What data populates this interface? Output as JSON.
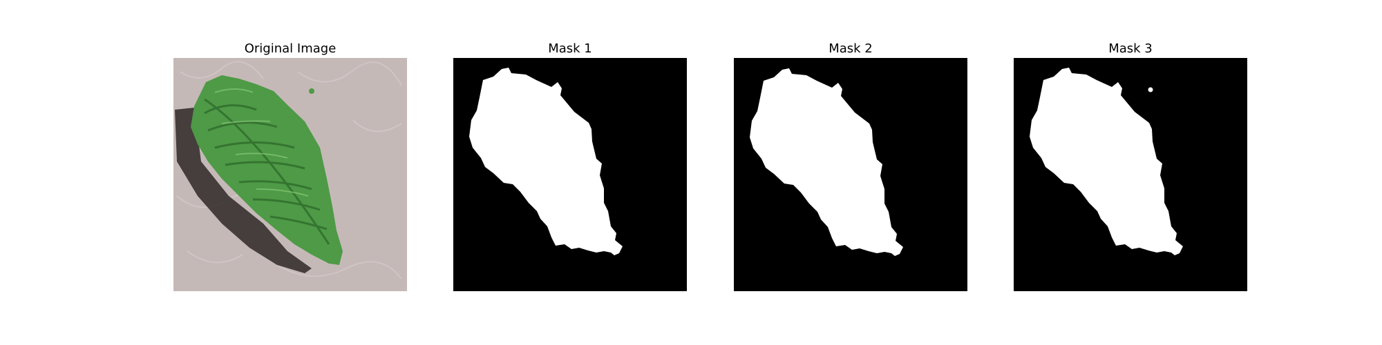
{
  "panels": [
    {
      "title": "Original Image"
    },
    {
      "title": "Mask 1"
    },
    {
      "title": "Mask 2"
    },
    {
      "title": "Mask 3"
    }
  ],
  "colors": {
    "background_paper": "#c4b8b7",
    "leaf_green": "#4f9a45",
    "leaf_dark": "#2f6b2c",
    "shadow": "#2b2625",
    "mask_background": "#000000",
    "mask_foreground": "#ffffff"
  }
}
